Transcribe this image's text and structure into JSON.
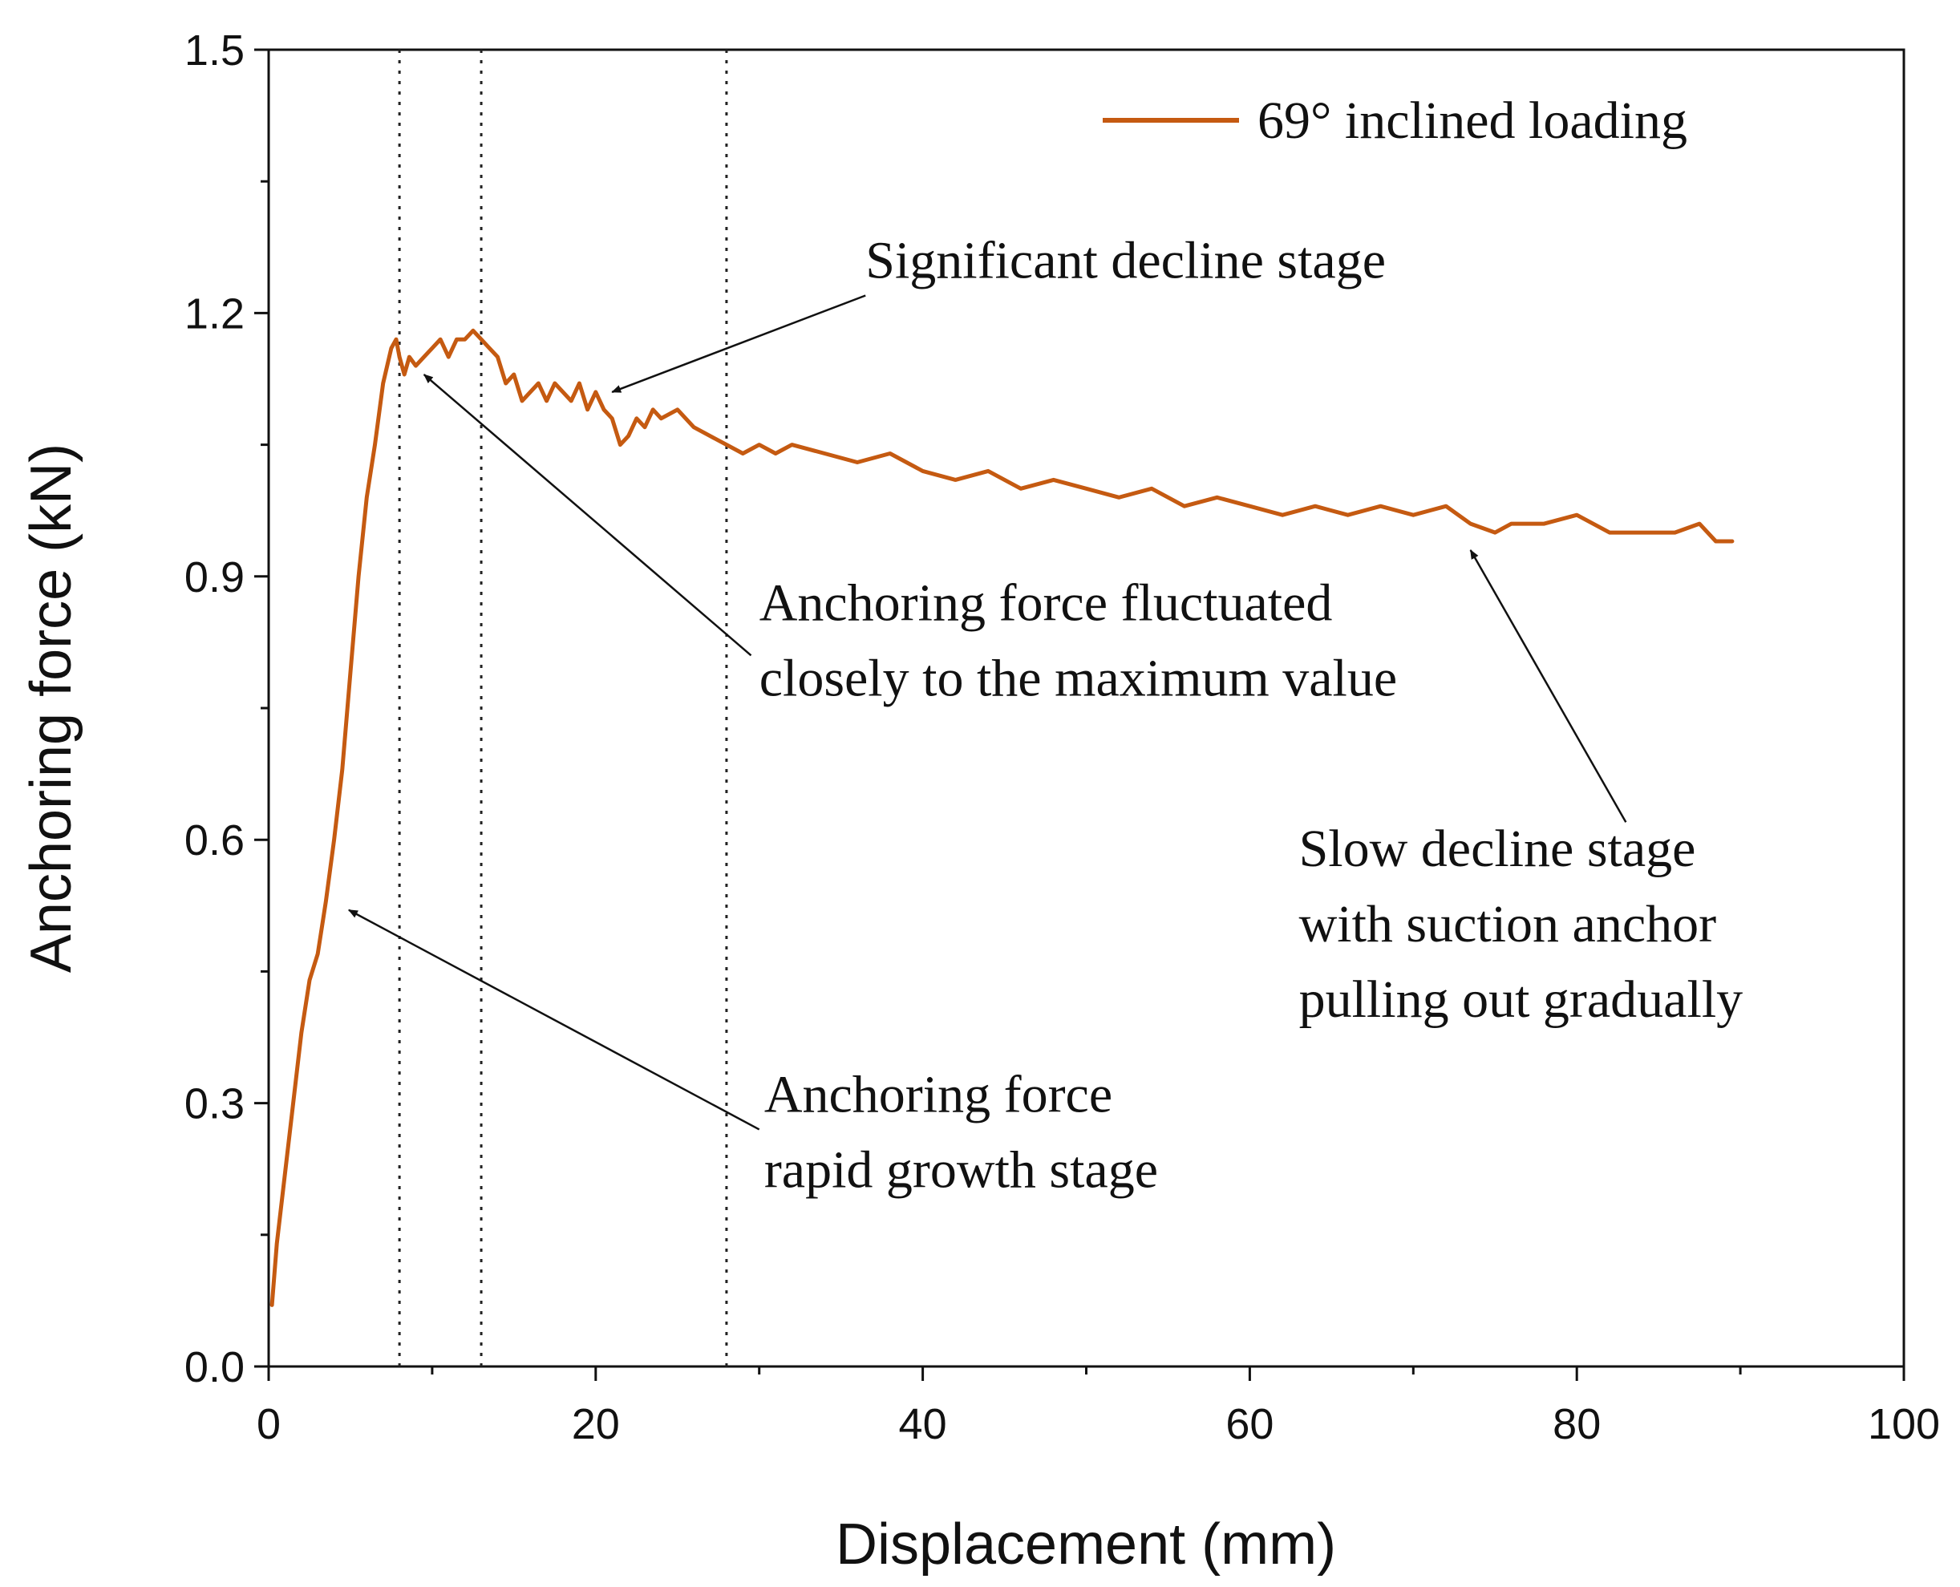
{
  "chart_data": {
    "type": "line",
    "title": "",
    "xlabel": "Displacement (mm)",
    "ylabel": "Anchoring force (kN)",
    "xlim": [
      0,
      100
    ],
    "ylim": [
      0,
      1.5
    ],
    "xticks": [
      0,
      20,
      40,
      60,
      80,
      100
    ],
    "xtick_labels": [
      "0",
      "20",
      "40",
      "60",
      "80",
      "100"
    ],
    "yticks": [
      0,
      0.3,
      0.6,
      0.9,
      1.2,
      1.5
    ],
    "ytick_labels": [
      "0.0",
      "0.3",
      "0.6",
      "0.9",
      "1.2",
      "1.5"
    ],
    "grid": false,
    "legend_position": "top-right",
    "series": [
      {
        "name": "69° inclined loading",
        "color": "#c55a11",
        "x": [
          0.2,
          0.5,
          1.0,
          1.5,
          2.0,
          2.5,
          3.0,
          3.5,
          4.0,
          4.5,
          5.0,
          5.5,
          6.0,
          6.5,
          7.0,
          7.5,
          7.8,
          8.0,
          8.3,
          8.6,
          9.0,
          9.5,
          10.0,
          10.5,
          11.0,
          11.5,
          12.0,
          12.5,
          13.0,
          13.5,
          14.0,
          14.5,
          15.0,
          15.5,
          16.0,
          16.5,
          17.0,
          17.5,
          18.0,
          18.5,
          19.0,
          19.5,
          20.0,
          20.5,
          21.0,
          21.5,
          22.0,
          22.5,
          23.0,
          23.5,
          24.0,
          25.0,
          26.0,
          27.0,
          28.0,
          29.0,
          30.0,
          31.0,
          32.0,
          34.0,
          36.0,
          38.0,
          40.0,
          42.0,
          44.0,
          46.0,
          48.0,
          50.0,
          52.0,
          54.0,
          56.0,
          58.0,
          60.0,
          62.0,
          64.0,
          66.0,
          68.0,
          70.0,
          72.0,
          73.5,
          75.0,
          76.0,
          78.0,
          80.0,
          82.0,
          84.0,
          86.0,
          87.5,
          88.5,
          89.5
        ],
        "y": [
          0.07,
          0.14,
          0.22,
          0.3,
          0.38,
          0.44,
          0.47,
          0.53,
          0.6,
          0.68,
          0.79,
          0.9,
          0.99,
          1.05,
          1.12,
          1.16,
          1.17,
          1.15,
          1.13,
          1.15,
          1.14,
          1.15,
          1.16,
          1.17,
          1.15,
          1.17,
          1.17,
          1.18,
          1.17,
          1.16,
          1.15,
          1.12,
          1.13,
          1.1,
          1.11,
          1.12,
          1.1,
          1.12,
          1.11,
          1.1,
          1.12,
          1.09,
          1.11,
          1.09,
          1.08,
          1.05,
          1.06,
          1.08,
          1.07,
          1.09,
          1.08,
          1.09,
          1.07,
          1.06,
          1.05,
          1.04,
          1.05,
          1.04,
          1.05,
          1.04,
          1.03,
          1.04,
          1.02,
          1.01,
          1.02,
          1.0,
          1.01,
          1.0,
          0.99,
          1.0,
          0.98,
          0.99,
          0.98,
          0.97,
          0.98,
          0.97,
          0.98,
          0.97,
          0.98,
          0.96,
          0.95,
          0.96,
          0.96,
          0.97,
          0.95,
          0.95,
          0.95,
          0.96,
          0.94,
          0.94
        ]
      }
    ],
    "vlines": [
      8.0,
      13.0,
      28.0
    ],
    "annotations": [
      {
        "lines": [
          "Significant decline stage"
        ],
        "arrow_to": [
          21.0,
          1.11
        ],
        "arrow_from": [
          36.5,
          1.22
        ],
        "text_at": [
          36.5,
          1.24
        ]
      },
      {
        "lines": [
          "Anchoring force fluctuated",
          "closely to the maximum value"
        ],
        "arrow_to": [
          9.5,
          1.13
        ],
        "arrow_from": [
          29.5,
          0.81
        ],
        "text_at": [
          30.0,
          0.85
        ]
      },
      {
        "lines": [
          "Slow decline stage",
          "with suction anchor",
          "pulling out gradually"
        ],
        "arrow_to": [
          73.5,
          0.93
        ],
        "arrow_from": [
          83.0,
          0.62
        ],
        "text_at": [
          63.0,
          0.57
        ]
      },
      {
        "lines": [
          "Anchoring force",
          "rapid growth stage"
        ],
        "arrow_to": [
          4.9,
          0.52
        ],
        "arrow_from": [
          30.0,
          0.27
        ],
        "text_at": [
          30.3,
          0.29
        ]
      }
    ]
  }
}
